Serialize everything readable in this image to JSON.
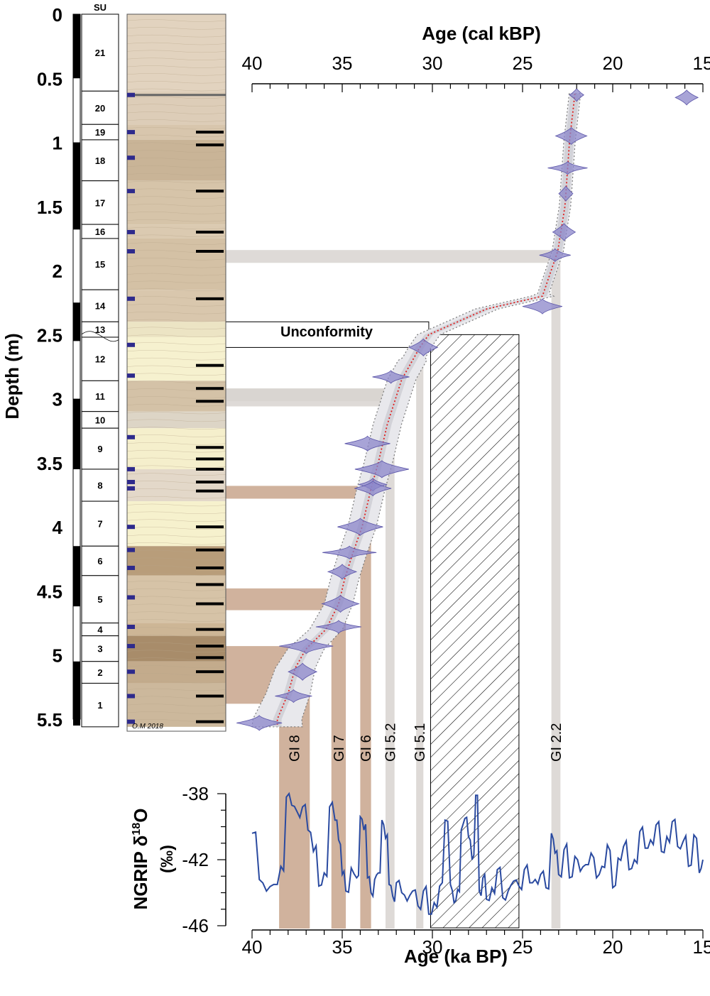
{
  "chart_data": {
    "type": "age-depth-model",
    "colors": {
      "stripe_brown": "#c8a58c",
      "stripe_grey": "#d8d4d0",
      "violin": "#8b85c9",
      "model_line": "#e02020",
      "ngrip_line": "#2a4aa0",
      "depth_bar": "#000000",
      "sample_marker": "#2e2a8c",
      "hatch_box": "#000000"
    },
    "depth_axis": {
      "label": "Depth (m)",
      "min": 0,
      "max": 5.5,
      "ticks": [
        "0",
        "0.5",
        "1",
        "1.5",
        "2",
        "2.5",
        "3",
        "3.5",
        "4",
        "4.5",
        "5",
        "5.5"
      ],
      "tick_values": [
        0,
        0.5,
        1,
        1.5,
        2,
        2.5,
        3,
        3.5,
        4,
        4.5,
        5,
        5.5
      ]
    },
    "age_top_axis": {
      "label": "Age (cal kBP)",
      "min": 40,
      "max": 15,
      "reversed": true,
      "ticks": [
        "40",
        "35",
        "30",
        "25",
        "20",
        "15"
      ],
      "tick_values": [
        40,
        35,
        30,
        25,
        20,
        15
      ]
    },
    "age_bottom_axis": {
      "label": "Age (ka BP)",
      "ticks": [
        "40",
        "35",
        "30",
        "25",
        "20",
        "15"
      ],
      "tick_values": [
        40,
        35,
        30,
        25,
        20,
        15
      ]
    },
    "ngrip_axis": {
      "label_main": "NGRIP δ",
      "label_sup": "18",
      "label_tail": "O",
      "unit": "(‰)",
      "ticks": [
        "-38",
        "-42",
        "-46"
      ],
      "tick_values": [
        -38,
        -42,
        -46
      ],
      "min": -46.2,
      "max": -37.8
    },
    "su_header": "SU",
    "stratigraphic_units": [
      {
        "id": "21",
        "top": 0.0,
        "bottom": 0.6
      },
      {
        "id": "20",
        "top": 0.6,
        "bottom": 0.86
      },
      {
        "id": "19",
        "top": 0.86,
        "bottom": 0.98
      },
      {
        "id": "18",
        "top": 0.98,
        "bottom": 1.3
      },
      {
        "id": "17",
        "top": 1.3,
        "bottom": 1.64
      },
      {
        "id": "16",
        "top": 1.64,
        "bottom": 1.75
      },
      {
        "id": "15",
        "top": 1.75,
        "bottom": 2.15
      },
      {
        "id": "14",
        "top": 2.15,
        "bottom": 2.4
      },
      {
        "id": "13",
        "top": 2.4,
        "bottom": 2.52
      },
      {
        "id": "12",
        "top": 2.52,
        "bottom": 2.86
      },
      {
        "id": "11",
        "top": 2.86,
        "bottom": 3.1
      },
      {
        "id": "10",
        "top": 3.1,
        "bottom": 3.23
      },
      {
        "id": "9",
        "top": 3.23,
        "bottom": 3.55
      },
      {
        "id": "8",
        "top": 3.55,
        "bottom": 3.8
      },
      {
        "id": "7",
        "top": 3.8,
        "bottom": 4.15
      },
      {
        "id": "6",
        "top": 4.15,
        "bottom": 4.38
      },
      {
        "id": "5",
        "top": 4.38,
        "bottom": 4.75
      },
      {
        "id": "4",
        "top": 4.75,
        "bottom": 4.85
      },
      {
        "id": "3",
        "top": 4.85,
        "bottom": 5.05
      },
      {
        "id": "2",
        "top": 5.05,
        "bottom": 5.22
      },
      {
        "id": "1",
        "top": 5.22,
        "bottom": 5.56
      }
    ],
    "magnetic_bar_black": [
      [
        0.0,
        0.5
      ],
      [
        1.0,
        1.68
      ],
      [
        2.25,
        2.55
      ],
      [
        3.0,
        3.55
      ],
      [
        4.15,
        4.62
      ],
      [
        5.05,
        5.55
      ]
    ],
    "sample_markers": [
      0.63,
      0.92,
      1.12,
      1.38,
      1.7,
      1.85,
      2.22,
      2.58,
      2.82,
      3.3,
      3.55,
      3.65,
      3.7,
      4.0,
      4.18,
      4.32,
      4.55,
      4.78,
      4.93,
      5.13,
      5.32,
      5.52
    ],
    "unit_lines": [
      0.92,
      1.02,
      1.38,
      1.7,
      1.85,
      2.22,
      2.74,
      2.92,
      3.02,
      3.38,
      3.47,
      3.55,
      3.65,
      3.72,
      4.0,
      4.18,
      4.32,
      4.45,
      4.6,
      4.8,
      4.93,
      5.02,
      5.13,
      5.32,
      5.52
    ],
    "log_signature": "O.M 2018",
    "unconformity": {
      "label": "Unconformity",
      "depth_top": 2.4,
      "depth_bottom": 2.6
    },
    "hiatus_age_range": [
      30.1,
      25.2
    ],
    "age_depth_model": {
      "depth": [
        0.62,
        1.0,
        1.5,
        1.85,
        2.2,
        2.3,
        2.5,
        2.6,
        2.85,
        3.2,
        3.5,
        3.7,
        4.0,
        4.2,
        4.4,
        4.6,
        4.8,
        4.95,
        5.1,
        5.3,
        5.5
      ],
      "age": [
        22.1,
        22.4,
        22.65,
        23.05,
        23.9,
        27.0,
        30.2,
        30.7,
        31.7,
        32.5,
        33.0,
        33.4,
        33.9,
        34.4,
        34.85,
        35.2,
        35.9,
        37.0,
        37.6,
        38.0,
        38.6
      ]
    },
    "dated_samples": [
      {
        "depth": 0.63,
        "age": 22.0
      },
      {
        "depth": 0.65,
        "age": 15.9
      },
      {
        "depth": 0.95,
        "age": 22.3
      },
      {
        "depth": 1.2,
        "age": 22.5
      },
      {
        "depth": 1.4,
        "age": 22.6
      },
      {
        "depth": 1.7,
        "age": 22.7
      },
      {
        "depth": 1.88,
        "age": 23.2
      },
      {
        "depth": 2.28,
        "age": 23.9
      },
      {
        "depth": 2.6,
        "age": 30.5
      },
      {
        "depth": 2.83,
        "age": 32.3
      },
      {
        "depth": 3.35,
        "age": 33.6
      },
      {
        "depth": 3.55,
        "age": 32.8
      },
      {
        "depth": 3.67,
        "age": 33.3
      },
      {
        "depth": 3.7,
        "age": 33.3
      },
      {
        "depth": 4.0,
        "age": 34.0
      },
      {
        "depth": 4.2,
        "age": 34.6
      },
      {
        "depth": 4.35,
        "age": 35.0
      },
      {
        "depth": 4.6,
        "age": 35.1
      },
      {
        "depth": 4.78,
        "age": 35.2
      },
      {
        "depth": 4.93,
        "age": 37.0
      },
      {
        "depth": 5.13,
        "age": 37.2
      },
      {
        "depth": 5.32,
        "age": 37.7
      },
      {
        "depth": 5.53,
        "age": 39.6
      }
    ],
    "correlation_bands": [
      {
        "label": "GI 8",
        "age_old": 38.5,
        "age_young": 36.8,
        "depth_top": 4.93,
        "depth_bottom": 5.38,
        "color": "brown"
      },
      {
        "label": "GI 7",
        "age_old": 35.6,
        "age_young": 34.8,
        "depth_top": 4.48,
        "depth_bottom": 4.65,
        "color": "brown"
      },
      {
        "label": "GI 6",
        "age_old": 34.0,
        "age_young": 33.4,
        "depth_top": 3.68,
        "depth_bottom": 3.76,
        "color": "brown"
      },
      {
        "label": "GI 5.2",
        "age_old": 32.6,
        "age_young": 32.1,
        "depth_top": 2.92,
        "depth_bottom": 3.02,
        "color": "grey"
      },
      {
        "label": "GI 5.1",
        "age_old": 30.9,
        "age_young": 30.5,
        "depth_top": 2.6,
        "depth_bottom": 2.6,
        "color": "grey"
      },
      {
        "label": "GI 2.2",
        "age_old": 23.4,
        "age_young": 22.9,
        "depth_top": 1.84,
        "depth_bottom": 1.9,
        "color": "grey"
      }
    ],
    "ngrip_series": {
      "name": "NGRIP δ18O",
      "age": [
        40.0,
        39.6,
        39.2,
        38.8,
        38.4,
        38.1,
        37.8,
        37.5,
        37.2,
        36.9,
        36.6,
        36.3,
        36.0,
        35.7,
        35.4,
        35.2,
        35.0,
        34.8,
        34.5,
        34.2,
        34.0,
        33.8,
        33.6,
        33.4,
        33.2,
        33.0,
        32.8,
        32.6,
        32.4,
        32.2,
        32.0,
        31.7,
        31.4,
        31.1,
        30.8,
        30.5,
        30.2,
        29.9,
        29.6,
        29.3,
        29.0,
        28.8,
        28.6,
        28.4,
        28.2,
        28.0,
        27.8,
        27.6,
        27.4,
        27.2,
        27.0,
        26.7,
        26.4,
        26.1,
        25.8,
        25.5,
        25.2,
        24.9,
        24.6,
        24.3,
        24.0,
        23.7,
        23.4,
        23.2,
        23.0,
        22.7,
        22.4,
        22.1,
        21.8,
        21.5,
        21.2,
        20.9,
        20.6,
        20.3,
        20.0,
        19.7,
        19.4,
        19.1,
        18.8,
        18.5,
        18.2,
        17.9,
        17.6,
        17.3,
        17.0,
        16.7,
        16.4,
        16.1,
        15.8,
        15.5,
        15.2,
        15.0
      ],
      "d18O": [
        -40.4,
        -43.2,
        -43.9,
        -43.5,
        -42.4,
        -38.2,
        -38.7,
        -39.1,
        -38.8,
        -40.2,
        -41.5,
        -43.6,
        -42.8,
        -38.8,
        -39.6,
        -40.8,
        -42.9,
        -43.9,
        -42.5,
        -43.1,
        -39.4,
        -40.2,
        -43.1,
        -44.0,
        -43.2,
        -42.8,
        -39.6,
        -40.7,
        -43.5,
        -44.2,
        -43.4,
        -44.0,
        -44.5,
        -43.9,
        -44.8,
        -43.9,
        -45.3,
        -44.6,
        -43.6,
        -39.6,
        -43.5,
        -44.6,
        -43.8,
        -40.2,
        -39.5,
        -40.6,
        -42.0,
        -38.1,
        -43.9,
        -43.1,
        -44.4,
        -43.7,
        -42.6,
        -44.3,
        -43.9,
        -43.3,
        -43.6,
        -42.6,
        -43.4,
        -43.2,
        -42.9,
        -43.7,
        -40.4,
        -41.6,
        -42.9,
        -41.4,
        -43.1,
        -41.8,
        -42.7,
        -42.3,
        -41.6,
        -43.1,
        -42.4,
        -41.1,
        -43.7,
        -41.9,
        -41.2,
        -42.6,
        -42.0,
        -40.3,
        -41.3,
        -40.8,
        -39.9,
        -41.5,
        -40.6,
        -39.7,
        -41.2,
        -40.9,
        -42.4,
        -40.5,
        -42.8,
        -42.0
      ]
    }
  }
}
